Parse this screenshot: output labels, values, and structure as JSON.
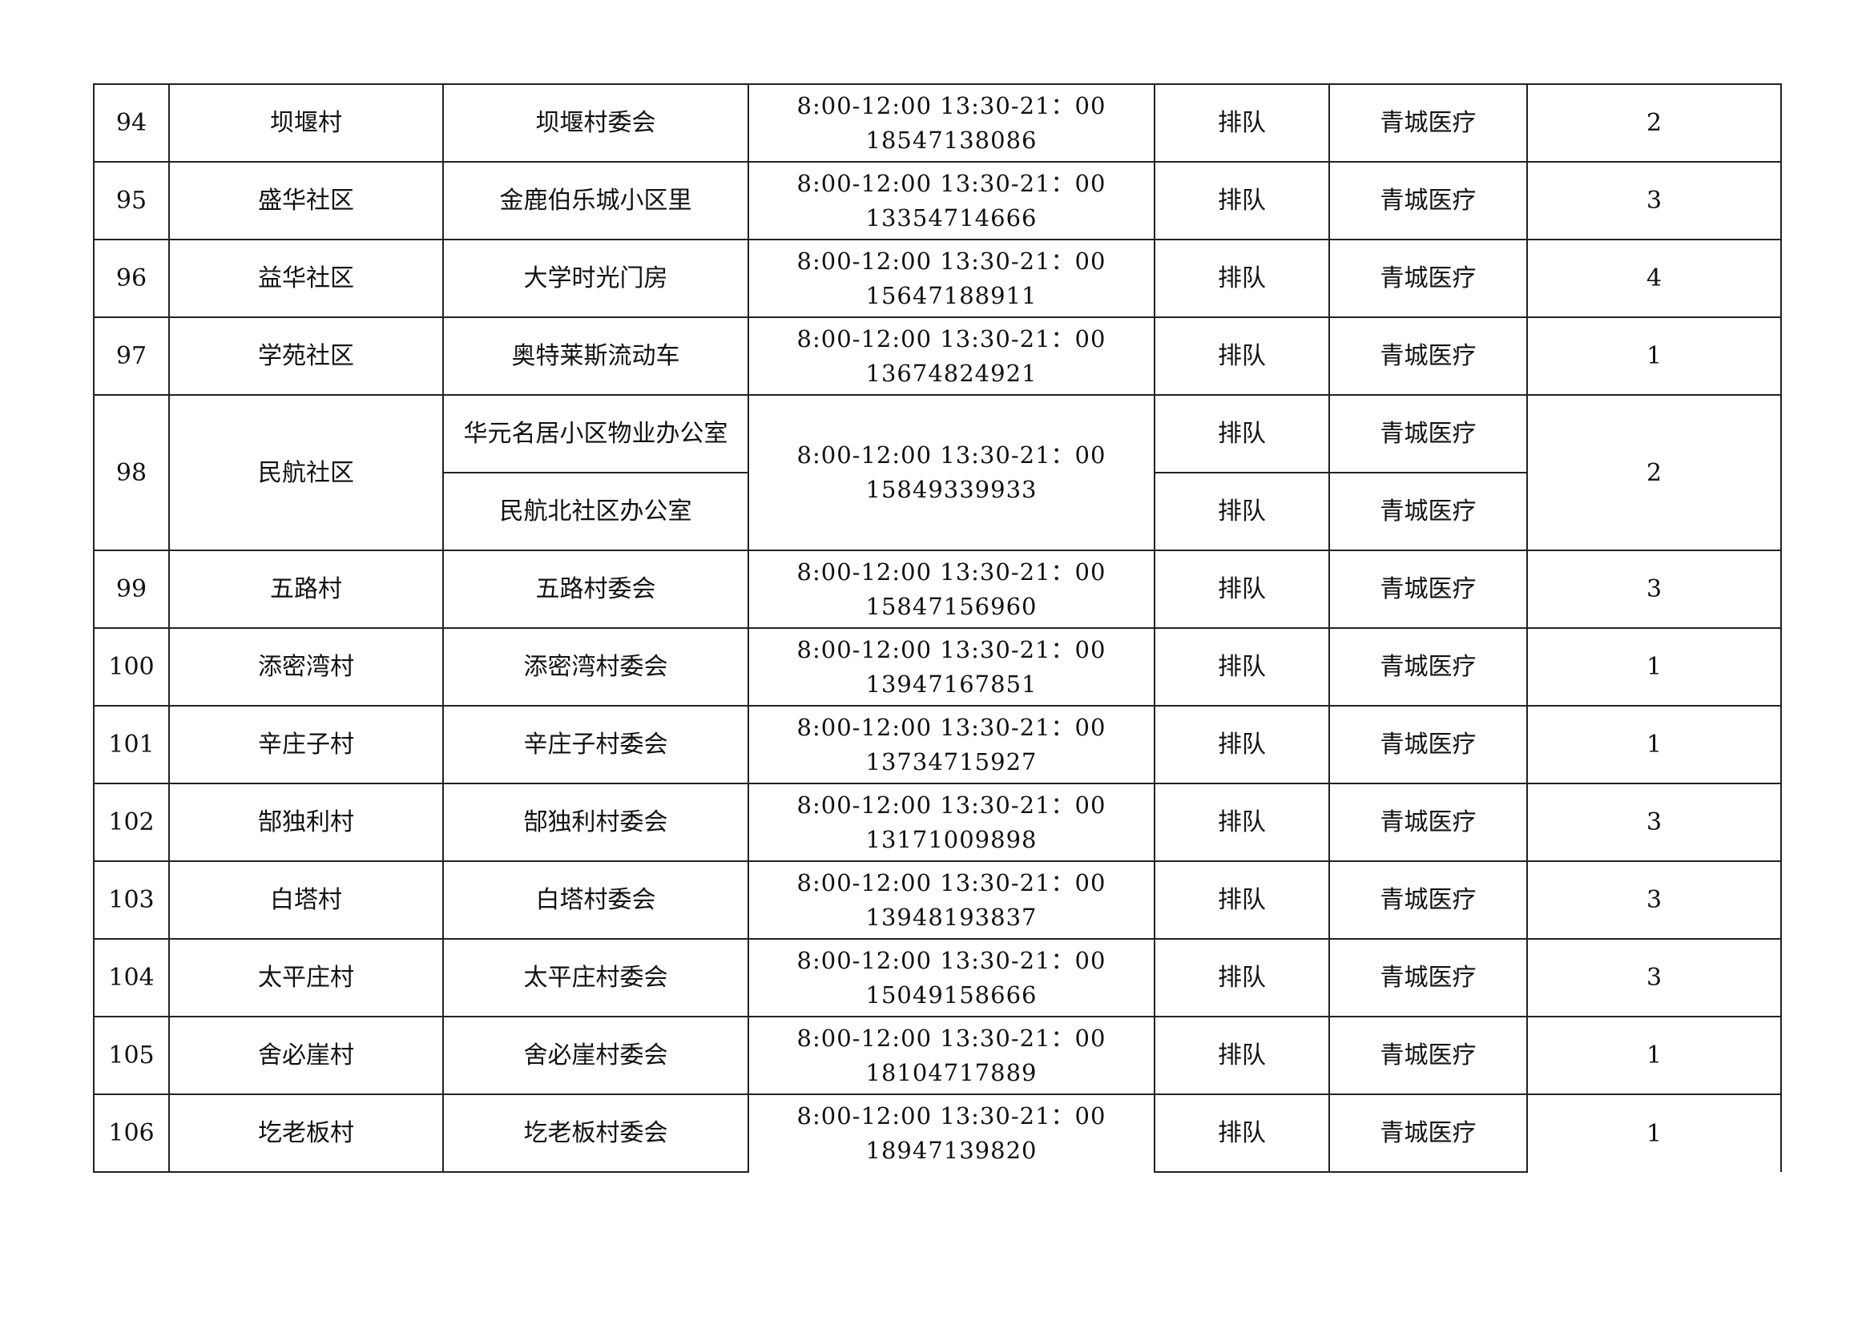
{
  "rows": [
    {
      "no": "94",
      "area": "坝堰村",
      "site": "坝堰村委会",
      "hours": "8:00-12:00 13:30-21：00",
      "phone": "18547138086",
      "mode": "排队",
      "org": "青城医疗",
      "count": "2"
    },
    {
      "no": "95",
      "area": "盛华社区",
      "site": "金鹿伯乐城小区里",
      "hours": "8:00-12:00 13:30-21：00",
      "phone": "13354714666",
      "mode": "排队",
      "org": "青城医疗",
      "count": "3"
    },
    {
      "no": "96",
      "area": "益华社区",
      "site": "大学时光门房",
      "hours": "8:00-12:00 13:30-21：00",
      "phone": "15647188911",
      "mode": "排队",
      "org": "青城医疗",
      "count": "4"
    },
    {
      "no": "97",
      "area": "学苑社区",
      "site": "奥特莱斯流动车",
      "hours": "8:00-12:00 13:30-21：00",
      "phone": "13674824921",
      "mode": "排队",
      "org": "青城医疗",
      "count": "1"
    },
    {
      "no": "98",
      "area": "民航社区",
      "sites": [
        "华元名居小区物业办公室",
        "民航北社区办公室"
      ],
      "hours": "8:00-12:00 13:30-21：00",
      "phone": "15849339933",
      "modes": [
        "排队",
        "排队"
      ],
      "orgs": [
        "青城医疗",
        "青城医疗"
      ],
      "count": "2"
    },
    {
      "no": "99",
      "area": "五路村",
      "site": "五路村委会",
      "hours": "8:00-12:00 13:30-21：00",
      "phone": "15847156960",
      "mode": "排队",
      "org": "青城医疗",
      "count": "3"
    },
    {
      "no": "100",
      "area": "添密湾村",
      "site": "添密湾村委会",
      "hours": "8:00-12:00 13:30-21：00",
      "phone": "13947167851",
      "mode": "排队",
      "org": "青城医疗",
      "count": "1"
    },
    {
      "no": "101",
      "area": "辛庄子村",
      "site": "辛庄子村委会",
      "hours": "8:00-12:00 13:30-21：00",
      "phone": "13734715927",
      "mode": "排队",
      "org": "青城医疗",
      "count": "1"
    },
    {
      "no": "102",
      "area": "郜独利村",
      "site": "郜独利村委会",
      "hours": "8:00-12:00 13:30-21：00",
      "phone": "13171009898",
      "mode": "排队",
      "org": "青城医疗",
      "count": "3"
    },
    {
      "no": "103",
      "area": "白塔村",
      "site": "白塔村委会",
      "hours": "8:00-12:00 13:30-21：00",
      "phone": "13948193837",
      "mode": "排队",
      "org": "青城医疗",
      "count": "3"
    },
    {
      "no": "104",
      "area": "太平庄村",
      "site": "太平庄村委会",
      "hours": "8:00-12:00 13:30-21：00",
      "phone": "15049158666",
      "mode": "排队",
      "org": "青城医疗",
      "count": "3"
    },
    {
      "no": "105",
      "area": "舍必崖村",
      "site": "舍必崖村委会",
      "hours": "8:00-12:00 13:30-21：00",
      "phone": "18104717889",
      "mode": "排队",
      "org": "青城医疗",
      "count": "1"
    },
    {
      "no": "106",
      "area": "圪老板村",
      "site": "圪老板村委会",
      "hours": "8:00-12:00 13:30-21：00",
      "phone": "18947139820",
      "mode": "排队",
      "org": "青城医疗",
      "count": "1"
    }
  ]
}
